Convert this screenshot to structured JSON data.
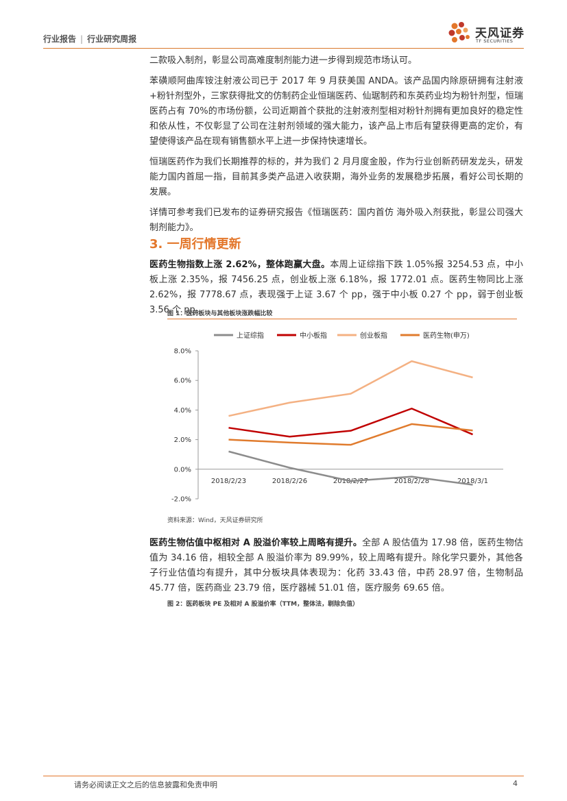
{
  "header": {
    "left": "行业报告",
    "right": "行业研究周报"
  },
  "logo": {
    "cn": "天风证券",
    "en": "TF SECURITIES"
  },
  "paragraphs": [
    "二款吸入制剂，彰显公司高难度制剂能力进一步得到规范市场认可。",
    "苯磺顺阿曲库铵注射液公司已于 2017 年 9 月获美国 ANDA。该产品国内除原研拥有注射液+粉针剂型外，三家获得批文的仿制药企业恒瑞医药、仙琚制药和东英药业均为粉针剂型，恒瑞医药占有 70%的市场份额，公司近期首个获批的注射液剂型相对粉针剂拥有更加良好的稳定性和依从性，不仅彰显了公司在注射剂领域的强大能力，该产品上市后有望获得更高的定价，有望使得该产品在现有销售额水平上进一步保持快速增长。",
    "恒瑞医药作为我们长期推荐的标的，并为我们 2 月月度金股，作为行业创新药研发龙头，研发能力国内首屈一指，目前其多类产品进入收获期，海外业务的发展稳步拓展，看好公司长期的发展。",
    "详情可参考我们已发布的证券研究报告《恒瑞医药：国内首仿 海外吸入剂获批，彰显公司强大制剂能力》。"
  ],
  "section": {
    "title": "3. 一周行情更新"
  },
  "market": {
    "lead": "医药生物指数上涨 2.62%，整体跑赢大盘。",
    "body": "本周上证综指下跌 1.05%报 3254.53 点，中小板上涨 2.35%，报 7456.25 点，创业板上涨 6.18%，报 1772.01 点。医药生物同比上涨 2.62%，报 7778.67 点，表现强于上证 3.67 个 pp，强于中小板 0.27 个 pp，弱于创业板 3.56 个 pp。"
  },
  "figure1": {
    "title": "图 1：医药板块与其他板块涨跌幅比较",
    "source": "资料来源：Wind，天风证券研究所"
  },
  "chart_data": {
    "type": "line",
    "categories": [
      "2018/2/23",
      "2018/2/26",
      "2018/2/27",
      "2018/2/28",
      "2018/3/1"
    ],
    "series": [
      {
        "name": "上证综指",
        "color": "#8c8c8c",
        "values": [
          1.2,
          0.1,
          -0.8,
          -0.5,
          -1.05
        ]
      },
      {
        "name": "中小板指",
        "color": "#c00000",
        "values": [
          2.8,
          2.2,
          2.6,
          4.1,
          2.35
        ]
      },
      {
        "name": "创业板指",
        "color": "#f4b183",
        "values": [
          3.6,
          4.5,
          5.1,
          7.3,
          6.2
        ]
      },
      {
        "name": "医药生物(申万)",
        "color": "#e07b2d",
        "values": [
          2.0,
          1.8,
          1.65,
          3.05,
          2.62
        ]
      }
    ],
    "yticks": [
      "8.0%",
      "6.0%",
      "4.0%",
      "2.0%",
      "0.0%",
      "-2.0%"
    ],
    "ylim": [
      -2,
      8
    ],
    "legend": "top"
  },
  "valuation": {
    "lead": "医药生物估值中枢相对 A 股溢价率较上周略有提升。",
    "body": "全部 A 股估值为 17.98 倍，医药生物估值为 34.16 倍，相较全部 A 股溢价率为 89.99%，较上周略有提升。除化学只要外，其他各子行业估值均有提升，其中分板块具体表现为：化药 33.43 倍，中药 28.97 倍，生物制品 45.77 倍，医药商业 23.79 倍，医疗器械 51.01 倍，医疗服务 69.65 倍。"
  },
  "figure2": {
    "title": "图 2：医药板块 PE 及相对 A 股溢价率（TTM，整体法，剔除负值）"
  },
  "footer": {
    "disclaimer": "请务必阅读正文之后的信息披露和免责申明",
    "page": "4"
  }
}
